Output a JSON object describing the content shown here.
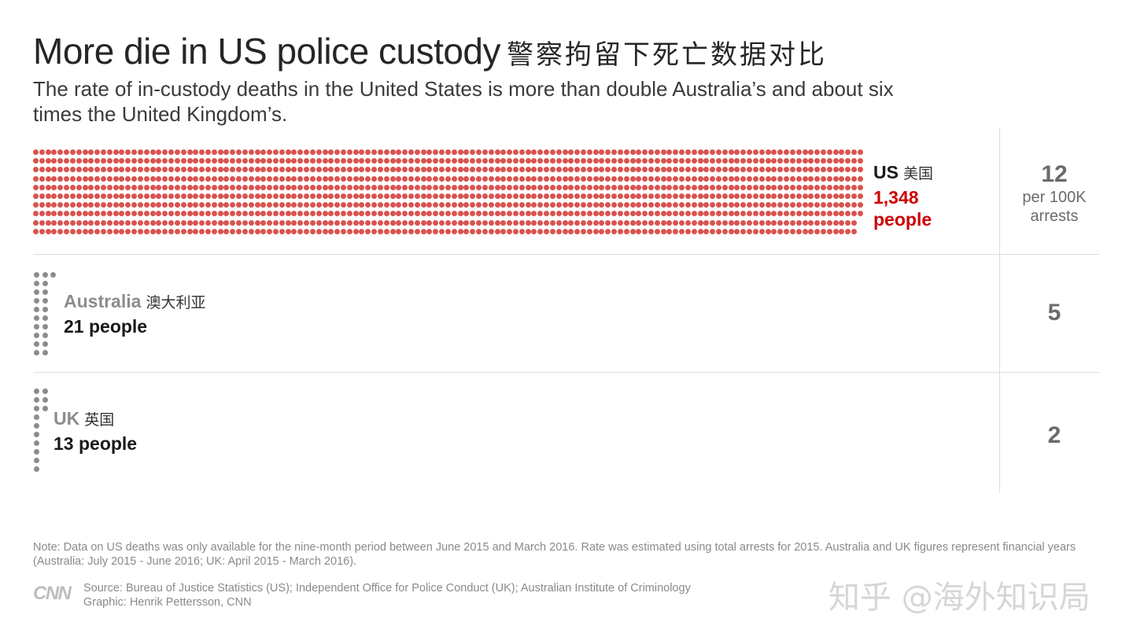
{
  "title": "More die in US police custody",
  "title_cn": "警察拘留下死亡数据对比",
  "subtitle": "The rate of in-custody deaths in the United States is more than double Australia’s and about six times the United Kingdom’s.",
  "chart_data": {
    "type": "pictogram",
    "series": [
      {
        "name": "US",
        "name_cn": "美国",
        "deaths": 1348,
        "deaths_label": "1,348",
        "people_label": "people",
        "rate": 12,
        "rate_unit": "per 100K arrests",
        "color": "#d9534f"
      },
      {
        "name": "Australia",
        "name_cn": "澳大利亚",
        "deaths": 21,
        "deaths_label": "21 people",
        "rate": 5,
        "color": "#8c8c8c"
      },
      {
        "name": "UK",
        "name_cn": "英国",
        "deaths": 13,
        "deaths_label": "13 people",
        "rate": 2,
        "color": "#8c8c8c"
      }
    ]
  },
  "note": "Note: Data on US deaths was only available for the nine-month period between June 2015 and March 2016. Rate was estimated using total arrests for 2015. Australia and UK figures represent financial years (Australia: July 2015 - June 2016; UK: April 2015 - March 2016).",
  "logo_text": "CNN",
  "source": "Source: Bureau of Justice Statistics (US); Independent Office for Police Conduct (UK); Australian Institute of Criminology",
  "graphic_credit": "Graphic: Henrik Pettersson, CNN",
  "watermark": "知乎 @海外知识局"
}
